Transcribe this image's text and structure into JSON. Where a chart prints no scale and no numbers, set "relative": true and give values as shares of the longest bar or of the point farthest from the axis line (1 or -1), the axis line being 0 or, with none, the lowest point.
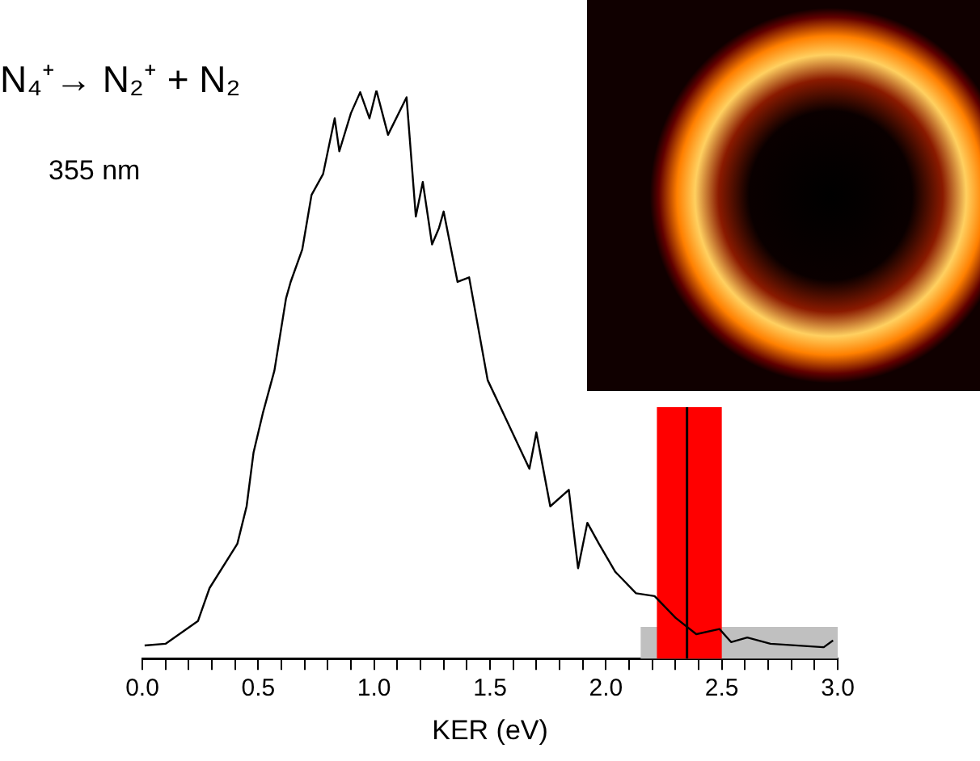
{
  "chart_data": {
    "type": "line",
    "relative": true,
    "xlabel": "KER (eV)",
    "xlim": [
      0,
      3
    ],
    "xticks": [
      {
        "value": 0,
        "label": "0.0"
      },
      {
        "value": 0.1,
        "label": null
      },
      {
        "value": 0.2,
        "label": null
      },
      {
        "value": 0.3,
        "label": null
      },
      {
        "value": 0.4,
        "label": null
      },
      {
        "value": 0.5,
        "label": "0.5"
      },
      {
        "value": 0.6,
        "label": null
      },
      {
        "value": 0.7,
        "label": null
      },
      {
        "value": 0.8,
        "label": null
      },
      {
        "value": 0.9,
        "label": null
      },
      {
        "value": 1,
        "label": "1.0"
      },
      {
        "value": 1.1,
        "label": null
      },
      {
        "value": 1.2,
        "label": null
      },
      {
        "value": 1.3,
        "label": null
      },
      {
        "value": 1.4,
        "label": null
      },
      {
        "value": 1.5,
        "label": "1.5"
      },
      {
        "value": 1.6,
        "label": null
      },
      {
        "value": 1.7,
        "label": null
      },
      {
        "value": 1.8,
        "label": null
      },
      {
        "value": 1.9,
        "label": null
      },
      {
        "value": 2,
        "label": "2.0"
      },
      {
        "value": 2.1,
        "label": null
      },
      {
        "value": 2.2,
        "label": null
      },
      {
        "value": 2.3,
        "label": null
      },
      {
        "value": 2.4,
        "label": null
      },
      {
        "value": 2.5,
        "label": "2.5"
      },
      {
        "value": 2.6,
        "label": null
      },
      {
        "value": 2.7,
        "label": null
      },
      {
        "value": 2.8,
        "label": null
      },
      {
        "value": 2.9,
        "label": null
      },
      {
        "value": 3,
        "label": "3.0"
      }
    ],
    "series": [
      {
        "color": "#000000",
        "x": [
          0.01,
          0.1,
          0.24,
          0.29,
          0.41,
          0.45,
          0.48,
          0.52,
          0.57,
          0.62,
          0.64,
          0.69,
          0.73,
          0.78,
          0.83,
          0.85,
          0.9,
          0.94,
          0.98,
          1.01,
          1.06,
          1.14,
          1.18,
          1.21,
          1.25,
          1.28,
          1.3,
          1.36,
          1.41,
          1.49,
          1.57,
          1.67,
          1.7,
          1.76,
          1.84,
          1.88,
          1.92,
          1.97,
          2.04,
          2.13,
          2.21,
          2.3,
          2.39,
          2.49,
          2.54,
          2.61,
          2.71,
          2.94,
          2.98
        ],
        "values": [
          0.023,
          0.026,
          0.066,
          0.124,
          0.202,
          0.268,
          0.363,
          0.432,
          0.507,
          0.634,
          0.663,
          0.72,
          0.816,
          0.853,
          0.951,
          0.893,
          0.96,
          0.997,
          0.951,
          1,
          0.922,
          0.988,
          0.778,
          0.839,
          0.729,
          0.758,
          0.787,
          0.663,
          0.671,
          0.49,
          0.421,
          0.334,
          0.398,
          0.268,
          0.297,
          0.159,
          0.239,
          0.202,
          0.153,
          0.115,
          0.11,
          0.072,
          0.043,
          0.052,
          0.029,
          0.037,
          0.026,
          0.02,
          0.032
        ]
      }
    ],
    "bands": [
      {
        "axis": "x",
        "from": 2.15,
        "to": 3,
        "color": "#c0c0c0"
      },
      {
        "axis": "x",
        "from": 2.22,
        "to": 2.5,
        "color": "#ff0000"
      }
    ],
    "ref_lines": [
      {
        "axis": "x",
        "value": 2.35,
        "color": "#000000"
      }
    ],
    "annotations": [
      "N₄⁺→ N₂⁺ + N₂",
      "355 nm"
    ],
    "grid": false,
    "legend": false,
    "marker": "none",
    "line_style": "solid"
  }
}
